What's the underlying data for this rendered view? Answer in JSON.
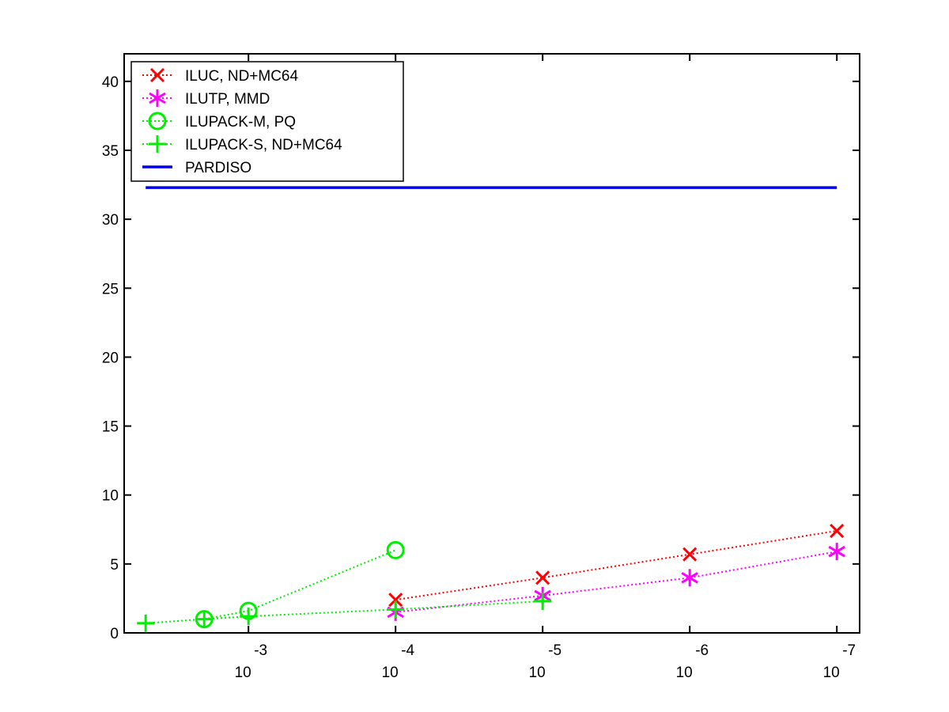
{
  "chart_data": {
    "type": "line",
    "title": "",
    "xlabel": "",
    "ylabel": "",
    "x_scale": "log-reversed",
    "x_ticks": [
      {
        "value": 0.001,
        "base": "10",
        "exp": "-3"
      },
      {
        "value": 0.0001,
        "base": "10",
        "exp": "-4"
      },
      {
        "value": 1e-05,
        "base": "10",
        "exp": "-5"
      },
      {
        "value": 1e-06,
        "base": "10",
        "exp": "-6"
      },
      {
        "value": 1e-07,
        "base": "10",
        "exp": "-7"
      }
    ],
    "xlim": [
      0.007,
      7e-08
    ],
    "ylim": [
      0,
      42
    ],
    "y_ticks": [
      "0",
      "5",
      "10",
      "15",
      "20",
      "25",
      "30",
      "35",
      "40"
    ],
    "grid": false,
    "legend_position": "top-left",
    "series": [
      {
        "name": "ILUC,  ND+MC64",
        "color": "#ff0000",
        "marker": "x",
        "line": "dotted",
        "x": [
          0.0001,
          1e-05,
          1e-06,
          1e-07
        ],
        "y": [
          2.4,
          4.0,
          5.7,
          7.4
        ]
      },
      {
        "name": "ILUTP, MMD",
        "color": "#ff00ff",
        "marker": "asterisk",
        "line": "dotted",
        "x": [
          0.0001,
          1e-05,
          1e-06,
          1e-07
        ],
        "y": [
          1.5,
          2.7,
          4.0,
          5.9
        ]
      },
      {
        "name": "ILUPACK-M, PQ",
        "color": "#00ee00",
        "marker": "circle",
        "line": "dotted",
        "x": [
          0.002,
          0.001,
          0.0001
        ],
        "y": [
          1.0,
          1.6,
          6.0
        ]
      },
      {
        "name": "ILUPACK-S, ND+MC64",
        "color": "#00ee00",
        "marker": "plus",
        "line": "dotted",
        "x": [
          0.005,
          0.002,
          0.001,
          0.0001,
          1e-05
        ],
        "y": [
          0.7,
          1.0,
          1.2,
          1.7,
          2.3
        ]
      },
      {
        "name": "PARDISO",
        "color": "#0000ee",
        "marker": "none",
        "line": "solid",
        "x": [
          0.005,
          1e-07
        ],
        "y": [
          32.3,
          32.3
        ]
      }
    ]
  }
}
